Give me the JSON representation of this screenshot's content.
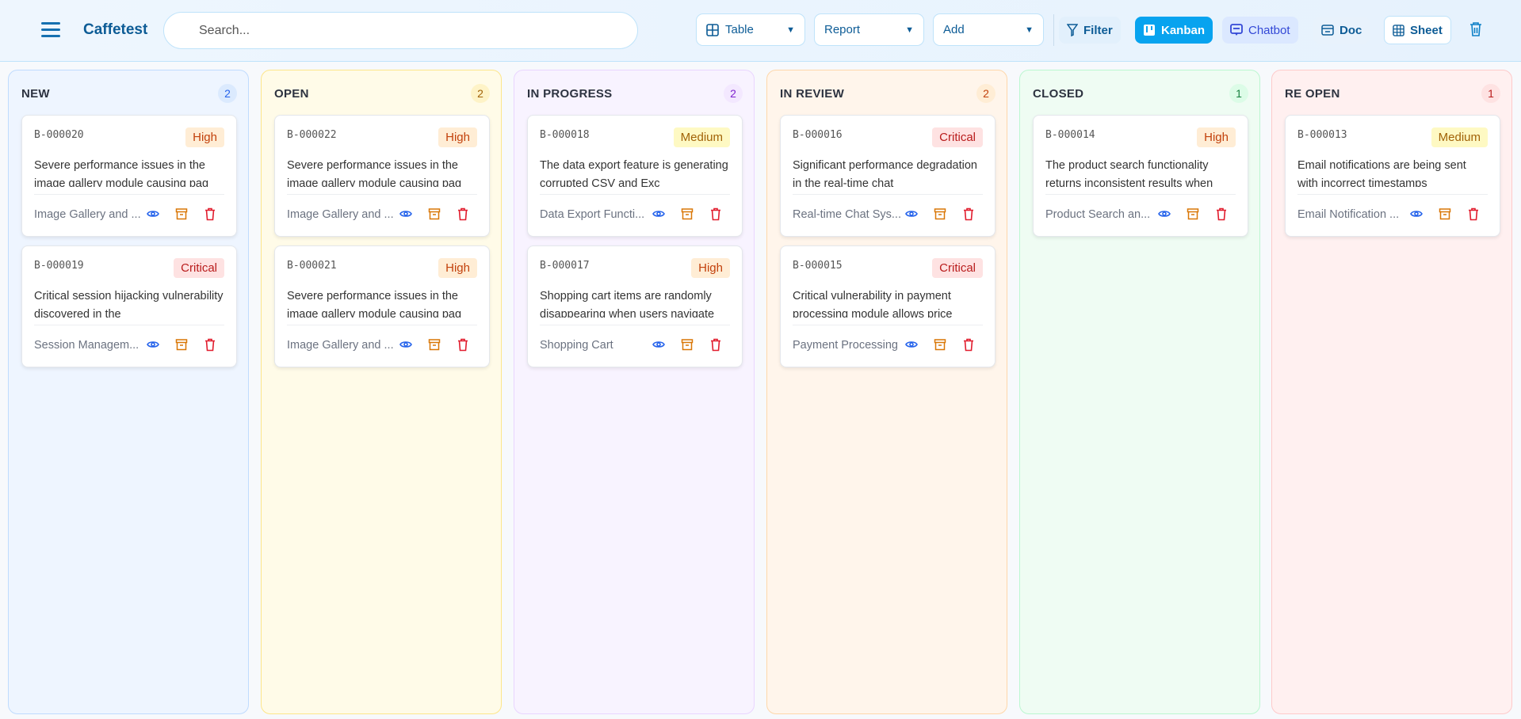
{
  "header": {
    "brand": "Caffetest",
    "search_placeholder": "Search...",
    "dropdowns": [
      {
        "label": "Table",
        "icon": "table-icon"
      },
      {
        "label": "Report"
      },
      {
        "label": "Add"
      }
    ],
    "filter_label": "Filter",
    "kanban_label": "Kanban",
    "chatbot_label": "Chatbot",
    "doc_label": "Doc",
    "sheet_label": "Sheet"
  },
  "colors": {
    "accent": "#0ea5e9",
    "high_bg": "#ffedd5",
    "high_fg": "#c2410c",
    "critical_bg": "#fee2e2",
    "critical_fg": "#b91c1c",
    "medium_bg": "#fef9c3",
    "medium_fg": "#a16207"
  },
  "columns": [
    {
      "title": "NEW",
      "count": "2",
      "bg": "#eef5ff",
      "border": "#bfdbfe",
      "count_bg": "#dbeafe",
      "count_fg": "#2563eb",
      "cards": [
        {
          "id": "B-000020",
          "priority": "High",
          "description": "Severe performance issues in the image gallery module causing pag",
          "module": "Image Gallery and ..."
        },
        {
          "id": "B-000019",
          "priority": "Critical",
          "description": "Critical session hijacking vulnerability discovered in the",
          "module": "Session Managem..."
        }
      ]
    },
    {
      "title": "OPEN",
      "count": "2",
      "bg": "#fffbe8",
      "border": "#fde68a",
      "count_bg": "#fef3c7",
      "count_fg": "#a16207",
      "cards": [
        {
          "id": "B-000022",
          "priority": "High",
          "description": "Severe performance issues in the image gallery module causing pag",
          "module": "Image Gallery and ..."
        },
        {
          "id": "B-000021",
          "priority": "High",
          "description": "Severe performance issues in the image gallery module causing pag",
          "module": "Image Gallery and ..."
        }
      ]
    },
    {
      "title": "IN PROGRESS",
      "count": "2",
      "bg": "#f8f3ff",
      "border": "#e9d5ff",
      "count_bg": "#f3e8ff",
      "count_fg": "#7e22ce",
      "cards": [
        {
          "id": "B-000018",
          "priority": "Medium",
          "description": "The data export feature is generating corrupted CSV and Exc",
          "module": "Data Export Functi..."
        },
        {
          "id": "B-000017",
          "priority": "High",
          "description": "Shopping cart items are randomly disappearing when users navigate",
          "module": "Shopping Cart"
        }
      ]
    },
    {
      "title": "IN REVIEW",
      "count": "2",
      "bg": "#fff5eb",
      "border": "#fed7aa",
      "count_bg": "#ffedd5",
      "count_fg": "#c2410c",
      "cards": [
        {
          "id": "B-000016",
          "priority": "Critical",
          "description": "Significant performance degradation in the real-time chat",
          "module": "Real-time Chat Sys..."
        },
        {
          "id": "B-000015",
          "priority": "Critical",
          "description": "Critical vulnerability in payment processing module allows price",
          "module": "Payment Processing"
        }
      ]
    },
    {
      "title": "CLOSED",
      "count": "1",
      "bg": "#effcf3",
      "border": "#bbf7d0",
      "count_bg": "#dcfce7",
      "count_fg": "#15803d",
      "cards": [
        {
          "id": "B-000014",
          "priority": "High",
          "description": "The product search functionality returns inconsistent results when",
          "module": "Product Search an..."
        }
      ]
    },
    {
      "title": "RE OPEN",
      "count": "1",
      "bg": "#fff0f0",
      "border": "#fecaca",
      "count_bg": "#fee2e2",
      "count_fg": "#b91c1c",
      "cards": [
        {
          "id": "B-000013",
          "priority": "Medium",
          "description": "Email notifications are being sent with incorrect timestamps",
          "module": "Email Notification ..."
        }
      ]
    }
  ]
}
